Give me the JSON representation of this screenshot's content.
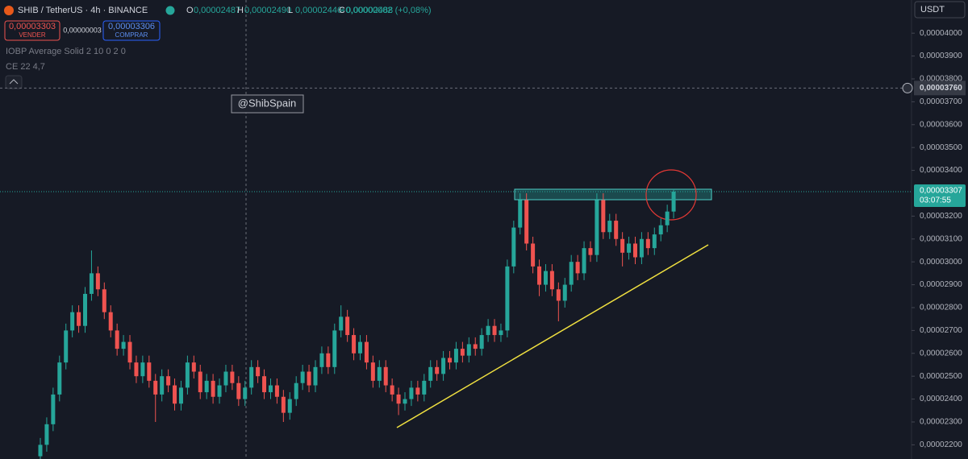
{
  "chart_data": {
    "type": "candlestick",
    "title": "SHIB / TetherUS · 4h · BINANCE",
    "ohlc_legend": [
      {
        "name": "O",
        "value": 2.487e-05,
        "label": "0,00002487"
      },
      {
        "name": "H",
        "value": 2.49e-05,
        "label": "0,00002490"
      },
      {
        "name": "L",
        "value": 2.446e-05,
        "label": "0,00002446"
      },
      {
        "name": "C",
        "value": 2.488e-05,
        "label": "0,00002488"
      }
    ],
    "change_label": "+0,00000002 (+0,08%)",
    "sell": {
      "price": {
        "value": 3.303e-05,
        "label": "0,00003303"
      },
      "text": "VENDER"
    },
    "spread": {
      "value": 3e-08,
      "label": "0,00000003"
    },
    "buy": {
      "price": {
        "value": 3.306e-05,
        "label": "0,00003306"
      },
      "text": "COMPRAR"
    },
    "indicators": [
      "IOBP Average Solid 2 10 0 2 0",
      "CE 22 4,7"
    ],
    "watermark": "@ShibSpain",
    "currency": "USDT",
    "crosshair": {
      "value": 3.76e-05,
      "label": "0,00003760"
    },
    "last_price": {
      "value": 3.307e-05,
      "label": "0,00003307",
      "countdown": "03:07:55"
    },
    "up_color": "#26a69a",
    "down_color": "#ef5350",
    "grid": false,
    "ylim": [
      2.138e-05,
      4.145e-05
    ],
    "yticks": [
      {
        "value": 2.2e-05,
        "label": "0,00002200"
      },
      {
        "value": 2.3e-05,
        "label": "0,00002300"
      },
      {
        "value": 2.4e-05,
        "label": "0,00002400"
      },
      {
        "value": 2.5e-05,
        "label": "0,00002500"
      },
      {
        "value": 2.6e-05,
        "label": "0,00002600"
      },
      {
        "value": 2.7e-05,
        "label": "0,00002700"
      },
      {
        "value": 2.8e-05,
        "label": "0,00002800"
      },
      {
        "value": 2.9e-05,
        "label": "0,00002900"
      },
      {
        "value": 3e-05,
        "label": "0,00003000"
      },
      {
        "value": 3.1e-05,
        "label": "0,00003100"
      },
      {
        "value": 3.2e-05,
        "label": "0,00003200"
      },
      {
        "value": 3.4e-05,
        "label": "0,00003400"
      },
      {
        "value": 3.5e-05,
        "label": "0,00003500"
      },
      {
        "value": 3.6e-05,
        "label": "0,00003600"
      },
      {
        "value": 3.7e-05,
        "label": "0,00003700"
      },
      {
        "value": 3.8e-05,
        "label": "0,00003800"
      },
      {
        "value": 3.9e-05,
        "label": "0,00003900"
      },
      {
        "value": 4e-05,
        "label": "0,00004000"
      }
    ],
    "candles": {
      "open": [
        2.15e-05,
        2.2e-05,
        2.29e-05,
        2.42e-05,
        2.56e-05,
        2.7e-05,
        2.78e-05,
        2.72e-05,
        2.86e-05,
        2.95e-05,
        2.88e-05,
        2.78e-05,
        2.7e-05,
        2.62e-05,
        2.65e-05,
        2.56e-05,
        2.5e-05,
        2.56e-05,
        2.48e-05,
        2.42e-05,
        2.5e-05,
        2.46e-05,
        2.38e-05,
        2.45e-05,
        2.56e-05,
        2.52e-05,
        2.43e-05,
        2.48e-05,
        2.41e-05,
        2.46e-05,
        2.52e-05,
        2.47e-05,
        2.4e-05,
        2.45e-05,
        2.54e-05,
        2.5e-05,
        2.43e-05,
        2.46e-05,
        2.41e-05,
        2.34e-05,
        2.4e-05,
        2.47e-05,
        2.52e-05,
        2.46e-05,
        2.54e-05,
        2.6e-05,
        2.54e-05,
        2.7e-05,
        2.76e-05,
        2.68e-05,
        2.6e-05,
        2.65e-05,
        2.56e-05,
        2.48e-05,
        2.54e-05,
        2.46e-05,
        2.42e-05,
        2.38e-05,
        2.4e-05,
        2.45e-05,
        2.42e-05,
        2.48e-05,
        2.54e-05,
        2.51e-05,
        2.58e-05,
        2.56e-05,
        2.62e-05,
        2.59e-05,
        2.64e-05,
        2.62e-05,
        2.68e-05,
        2.72e-05,
        2.68e-05,
        2.7e-05,
        2.98e-05,
        3.15e-05,
        3.27e-05,
        3.08e-05,
        2.98e-05,
        2.9e-05,
        2.96e-05,
        2.88e-05,
        2.83e-05,
        2.9e-05,
        3e-05,
        2.95e-05,
        3.06e-05,
        3.03e-05,
        3.27e-05,
        3.13e-05,
        3.18e-05,
        3.1e-05,
        3.04e-05,
        3.08e-05,
        3.02e-05,
        3.1e-05,
        3.06e-05,
        3.12e-05,
        3.16e-05,
        3.22e-05
      ],
      "high": [
        2.23e-05,
        2.32e-05,
        2.45e-05,
        2.59e-05,
        2.73e-05,
        2.81e-05,
        2.81e-05,
        2.89e-05,
        3.05e-05,
        2.98e-05,
        2.91e-05,
        2.81e-05,
        2.73e-05,
        2.68e-05,
        2.68e-05,
        2.59e-05,
        2.59e-05,
        2.59e-05,
        2.51e-05,
        2.53e-05,
        2.53e-05,
        2.49e-05,
        2.48e-05,
        2.59e-05,
        2.59e-05,
        2.55e-05,
        2.51e-05,
        2.51e-05,
        2.49e-05,
        2.55e-05,
        2.55e-05,
        2.5e-05,
        2.48e-05,
        2.57e-05,
        2.57e-05,
        2.53e-05,
        2.49e-05,
        2.49e-05,
        2.44e-05,
        2.43e-05,
        2.5e-05,
        2.55e-05,
        2.55e-05,
        2.57e-05,
        2.63e-05,
        2.63e-05,
        2.73e-05,
        2.81e-05,
        2.79e-05,
        2.71e-05,
        2.68e-05,
        2.68e-05,
        2.59e-05,
        2.57e-05,
        2.57e-05,
        2.49e-05,
        2.45e-05,
        2.43e-05,
        2.48e-05,
        2.48e-05,
        2.51e-05,
        2.57e-05,
        2.57e-05,
        2.61e-05,
        2.61e-05,
        2.65e-05,
        2.65e-05,
        2.67e-05,
        2.67e-05,
        2.71e-05,
        2.75e-05,
        2.75e-05,
        2.73e-05,
        3.01e-05,
        3.18e-05,
        3.3e-05,
        3.3e-05,
        3.11e-05,
        3.01e-05,
        2.99e-05,
        2.99e-05,
        2.91e-05,
        2.93e-05,
        3.03e-05,
        3.03e-05,
        3.09e-05,
        3.09e-05,
        3.3e-05,
        3.3e-05,
        3.21e-05,
        3.21e-05,
        3.13e-05,
        3.11e-05,
        3.11e-05,
        3.13e-05,
        3.13e-05,
        3.15e-05,
        3.19e-05,
        3.25e-05,
        3.32e-05
      ],
      "low": [
        2.12e-05,
        2.17e-05,
        2.26e-05,
        2.39e-05,
        2.53e-05,
        2.67e-05,
        2.69e-05,
        2.69e-05,
        2.83e-05,
        2.85e-05,
        2.75e-05,
        2.67e-05,
        2.59e-05,
        2.59e-05,
        2.53e-05,
        2.47e-05,
        2.47e-05,
        2.45e-05,
        2.3e-05,
        2.39e-05,
        2.43e-05,
        2.35e-05,
        2.35e-05,
        2.42e-05,
        2.49e-05,
        2.4e-05,
        2.4e-05,
        2.38e-05,
        2.38e-05,
        2.43e-05,
        2.44e-05,
        2.37e-05,
        2.37e-05,
        2.42e-05,
        2.47e-05,
        2.4e-05,
        2.4e-05,
        2.38e-05,
        2.3e-05,
        2.31e-05,
        2.37e-05,
        2.44e-05,
        2.43e-05,
        2.43e-05,
        2.51e-05,
        2.51e-05,
        2.51e-05,
        2.67e-05,
        2.65e-05,
        2.57e-05,
        2.57e-05,
        2.53e-05,
        2.45e-05,
        2.45e-05,
        2.43e-05,
        2.39e-05,
        2.33e-05,
        2.35e-05,
        2.37e-05,
        2.39e-05,
        2.39e-05,
        2.45e-05,
        2.48e-05,
        2.48e-05,
        2.53e-05,
        2.53e-05,
        2.56e-05,
        2.56e-05,
        2.59e-05,
        2.59e-05,
        2.65e-05,
        2.65e-05,
        2.65e-05,
        2.67e-05,
        2.95e-05,
        3.12e-05,
        3.05e-05,
        2.95e-05,
        2.85e-05,
        2.87e-05,
        2.85e-05,
        2.74e-05,
        2.8e-05,
        2.87e-05,
        2.92e-05,
        2.92e-05,
        3e-05,
        3e-05,
        3.1e-05,
        3.1e-05,
        3.07e-05,
        2.98e-05,
        3.01e-05,
        2.99e-05,
        2.99e-05,
        3.03e-05,
        3.03e-05,
        3.09e-05,
        3.13e-05,
        3.19e-05
      ],
      "close": [
        2.2e-05,
        2.29e-05,
        2.42e-05,
        2.56e-05,
        2.7e-05,
        2.78e-05,
        2.72e-05,
        2.86e-05,
        2.95e-05,
        2.88e-05,
        2.78e-05,
        2.7e-05,
        2.62e-05,
        2.65e-05,
        2.56e-05,
        2.5e-05,
        2.56e-05,
        2.48e-05,
        2.42e-05,
        2.5e-05,
        2.46e-05,
        2.38e-05,
        2.45e-05,
        2.56e-05,
        2.52e-05,
        2.43e-05,
        2.48e-05,
        2.41e-05,
        2.46e-05,
        2.52e-05,
        2.47e-05,
        2.4e-05,
        2.45e-05,
        2.54e-05,
        2.5e-05,
        2.43e-05,
        2.46e-05,
        2.41e-05,
        2.34e-05,
        2.4e-05,
        2.47e-05,
        2.52e-05,
        2.46e-05,
        2.54e-05,
        2.6e-05,
        2.54e-05,
        2.7e-05,
        2.76e-05,
        2.68e-05,
        2.6e-05,
        2.65e-05,
        2.56e-05,
        2.48e-05,
        2.54e-05,
        2.46e-05,
        2.42e-05,
        2.38e-05,
        2.4e-05,
        2.45e-05,
        2.42e-05,
        2.48e-05,
        2.54e-05,
        2.51e-05,
        2.58e-05,
        2.56e-05,
        2.62e-05,
        2.59e-05,
        2.64e-05,
        2.62e-05,
        2.68e-05,
        2.72e-05,
        2.68e-05,
        2.7e-05,
        2.98e-05,
        3.15e-05,
        3.27e-05,
        3.08e-05,
        2.98e-05,
        2.9e-05,
        2.96e-05,
        2.88e-05,
        2.83e-05,
        2.9e-05,
        3e-05,
        2.95e-05,
        3.06e-05,
        3.03e-05,
        3.27e-05,
        3.13e-05,
        3.18e-05,
        3.1e-05,
        3.04e-05,
        3.08e-05,
        3.02e-05,
        3.1e-05,
        3.06e-05,
        3.12e-05,
        3.16e-05,
        3.22e-05,
        3.307e-05
      ]
    }
  }
}
